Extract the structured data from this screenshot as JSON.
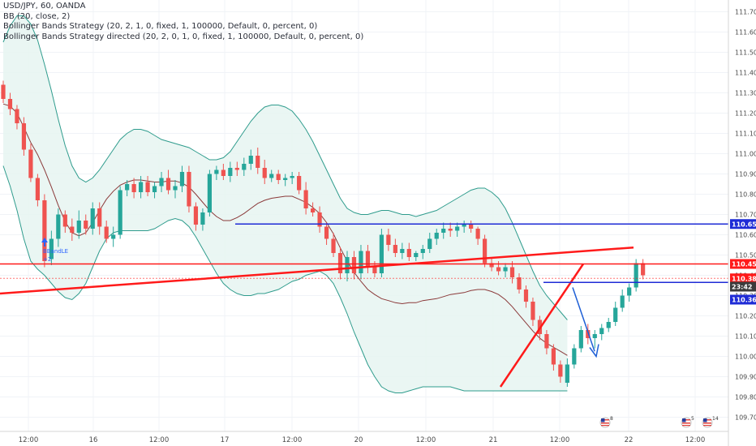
{
  "legend": {
    "line1": "USD/JPY, 60, OANDA",
    "line2": "BB (20, close, 2)",
    "line3": "Bollinger Bands Strategy (20, 2, 1, 0, fixed, 1, 100000, Default, 0, percent, 0)",
    "line4": "Bollinger Bands Strategy directed (20, 2, 0, 1, 0, fixed, 1, 100000, Default, 0, percent, 0)"
  },
  "colors": {
    "up": "#26a69a",
    "down": "#ef5350",
    "band": "#2f9c8d",
    "band_fill": "#e6f4f1",
    "basis": "#8b3a3a",
    "blue_line": "#1e2bd6",
    "red_line": "#ff1a1a",
    "arrow": "#1e5fd6",
    "tag_blue": "#1e2bd6",
    "tag_red": "#ff1a1a",
    "tag_dark": "#3b3b3b"
  },
  "chart_data": {
    "type": "candlestick",
    "symbol": "USD/JPY",
    "interval": "60",
    "source": "OANDA",
    "ylim": [
      109.66,
      111.8
    ],
    "y_ticks": [
      "111.700",
      "111.600",
      "111.500",
      "111.400",
      "111.300",
      "111.200",
      "111.100",
      "111.000",
      "110.900",
      "110.800",
      "110.700",
      "110.600",
      "110.500",
      "110.400",
      "110.300",
      "110.200",
      "110.100",
      "110.000",
      "109.900",
      "109.800",
      "109.700"
    ],
    "x_ticks": [
      "12:00",
      "16",
      "12:00",
      "17",
      "12:00",
      "20",
      "12:00",
      "21",
      "12:00",
      "22",
      "12:00"
    ],
    "price_tags": [
      {
        "label": "110.653",
        "value": 110.653,
        "color": "blue"
      },
      {
        "label": "110.456",
        "value": 110.456,
        "color": "red"
      },
      {
        "label": "110.385",
        "value": 110.385,
        "color": "red"
      },
      {
        "label": "23:42",
        "value": 110.344,
        "color": "dark"
      },
      {
        "label": "110.365",
        "value": 110.28,
        "color": "blue"
      }
    ],
    "candles": [
      [
        111.34,
        111.36,
        111.25,
        111.27
      ],
      [
        111.27,
        111.3,
        111.19,
        111.22
      ],
      [
        111.22,
        111.24,
        111.12,
        111.15
      ],
      [
        111.15,
        111.18,
        110.99,
        111.02
      ],
      [
        111.02,
        111.05,
        110.86,
        110.88
      ],
      [
        110.88,
        110.9,
        110.74,
        110.77
      ],
      [
        110.77,
        110.8,
        110.44,
        110.47
      ],
      [
        110.48,
        110.62,
        110.45,
        110.58
      ],
      [
        110.58,
        110.73,
        110.54,
        110.7
      ],
      [
        110.7,
        110.72,
        110.61,
        110.64
      ],
      [
        110.64,
        110.68,
        110.57,
        110.61
      ],
      [
        110.61,
        110.72,
        110.58,
        110.67
      ],
      [
        110.67,
        110.7,
        110.6,
        110.63
      ],
      [
        110.63,
        110.76,
        110.6,
        110.73
      ],
      [
        110.73,
        110.76,
        110.6,
        110.64
      ],
      [
        110.64,
        110.67,
        110.56,
        110.58
      ],
      [
        110.58,
        110.64,
        110.54,
        110.6
      ],
      [
        110.6,
        110.84,
        110.58,
        110.82
      ],
      [
        110.82,
        110.87,
        110.79,
        110.85
      ],
      [
        110.85,
        110.88,
        110.78,
        110.81
      ],
      [
        110.81,
        110.89,
        110.78,
        110.86
      ],
      [
        110.86,
        110.89,
        110.79,
        110.81
      ],
      [
        110.81,
        110.86,
        110.78,
        110.84
      ],
      [
        110.84,
        110.91,
        110.81,
        110.88
      ],
      [
        110.88,
        110.92,
        110.8,
        110.82
      ],
      [
        110.82,
        110.87,
        110.78,
        110.84
      ],
      [
        110.84,
        110.94,
        110.81,
        110.91
      ],
      [
        110.91,
        110.94,
        110.71,
        110.74
      ],
      [
        110.74,
        110.76,
        110.62,
        110.65
      ],
      [
        110.65,
        110.73,
        110.62,
        110.71
      ],
      [
        110.71,
        110.92,
        110.69,
        110.9
      ],
      [
        110.9,
        110.94,
        110.87,
        110.92
      ],
      [
        110.92,
        110.95,
        110.87,
        110.89
      ],
      [
        110.89,
        110.96,
        110.86,
        110.93
      ],
      [
        110.93,
        110.96,
        110.89,
        110.92
      ],
      [
        110.92,
        110.98,
        110.89,
        110.95
      ],
      [
        110.95,
        111.02,
        110.92,
        110.99
      ],
      [
        110.99,
        111.03,
        110.9,
        110.93
      ],
      [
        110.93,
        110.97,
        110.85,
        110.88
      ],
      [
        110.88,
        110.92,
        110.86,
        110.9
      ],
      [
        110.9,
        110.92,
        110.85,
        110.87
      ],
      [
        110.87,
        110.9,
        110.84,
        110.88
      ],
      [
        110.88,
        110.91,
        110.85,
        110.89
      ],
      [
        110.89,
        110.91,
        110.8,
        110.82
      ],
      [
        110.82,
        110.86,
        110.7,
        110.73
      ],
      [
        110.73,
        110.76,
        110.69,
        110.71
      ],
      [
        110.71,
        110.74,
        110.61,
        110.64
      ],
      [
        110.64,
        110.66,
        110.55,
        110.58
      ],
      [
        110.58,
        110.61,
        110.49,
        110.51
      ],
      [
        110.51,
        110.54,
        110.38,
        110.41
      ],
      [
        110.41,
        110.52,
        110.37,
        110.49
      ],
      [
        110.49,
        110.52,
        110.38,
        110.41
      ],
      [
        110.41,
        110.55,
        110.38,
        110.52
      ],
      [
        110.52,
        110.55,
        110.41,
        110.44
      ],
      [
        110.44,
        110.47,
        110.39,
        110.41
      ],
      [
        110.41,
        110.63,
        110.39,
        110.6
      ],
      [
        110.6,
        110.63,
        110.52,
        110.55
      ],
      [
        110.55,
        110.58,
        110.49,
        110.51
      ],
      [
        110.51,
        110.56,
        110.48,
        110.53
      ],
      [
        110.53,
        110.56,
        110.47,
        110.49
      ],
      [
        110.49,
        110.52,
        110.47,
        110.51
      ],
      [
        110.51,
        110.55,
        110.48,
        110.53
      ],
      [
        110.53,
        110.61,
        110.51,
        110.58
      ],
      [
        110.58,
        110.63,
        110.55,
        110.61
      ],
      [
        110.61,
        110.66,
        110.58,
        110.63
      ],
      [
        110.63,
        110.66,
        110.59,
        110.62
      ],
      [
        110.62,
        110.66,
        110.59,
        110.64
      ],
      [
        110.64,
        110.67,
        110.61,
        110.65
      ],
      [
        110.65,
        110.67,
        110.61,
        110.63
      ],
      [
        110.63,
        110.64,
        110.55,
        110.58
      ],
      [
        110.58,
        110.6,
        110.44,
        110.46
      ],
      [
        110.46,
        110.49,
        110.42,
        110.44
      ],
      [
        110.44,
        110.47,
        110.4,
        110.42
      ],
      [
        110.42,
        110.46,
        110.39,
        110.44
      ],
      [
        110.44,
        110.47,
        110.36,
        110.39
      ],
      [
        110.39,
        110.41,
        110.31,
        110.33
      ],
      [
        110.33,
        110.35,
        110.24,
        110.27
      ],
      [
        110.27,
        110.29,
        110.15,
        110.18
      ],
      [
        110.18,
        110.2,
        110.08,
        110.11
      ],
      [
        110.11,
        110.13,
        110.01,
        110.04
      ],
      [
        110.04,
        110.06,
        109.93,
        109.96
      ],
      [
        109.96,
        109.98,
        109.87,
        109.9
      ],
      [
        109.87,
        109.99,
        109.85,
        109.96
      ],
      [
        109.96,
        110.06,
        109.94,
        110.04
      ],
      [
        110.04,
        110.15,
        110.02,
        110.13
      ],
      [
        110.13,
        110.16,
        110.06,
        110.09
      ],
      [
        110.09,
        110.13,
        110.04,
        110.11
      ],
      [
        110.11,
        110.16,
        110.08,
        110.14
      ],
      [
        110.14,
        110.19,
        110.12,
        110.17
      ],
      [
        110.17,
        110.27,
        110.15,
        110.24
      ],
      [
        110.24,
        110.33,
        110.22,
        110.3
      ],
      [
        110.3,
        110.36,
        110.27,
        110.34
      ],
      [
        110.34,
        110.48,
        110.32,
        110.46
      ],
      [
        110.46,
        110.48,
        110.38,
        110.4
      ]
    ],
    "bb_upper": [
      111.55,
      111.63,
      111.68,
      111.68,
      111.64,
      111.56,
      111.44,
      111.31,
      111.17,
      111.04,
      110.94,
      110.88,
      110.86,
      110.88,
      110.92,
      110.97,
      111.02,
      111.07,
      111.1,
      111.12,
      111.12,
      111.11,
      111.09,
      111.07,
      111.06,
      111.05,
      111.04,
      111.03,
      111.01,
      110.99,
      110.97,
      110.97,
      110.98,
      111.01,
      111.06,
      111.11,
      111.16,
      111.2,
      111.23,
      111.24,
      111.24,
      111.23,
      111.21,
      111.17,
      111.12,
      111.06,
      110.99,
      110.92,
      110.85,
      110.78,
      110.73,
      110.71,
      110.7,
      110.7,
      110.71,
      110.72,
      110.72,
      110.71,
      110.7,
      110.7,
      110.69,
      110.7,
      110.71,
      110.72,
      110.74,
      110.76,
      110.78,
      110.8,
      110.82,
      110.83,
      110.83,
      110.81,
      110.78,
      110.73,
      110.66,
      110.58,
      110.5,
      110.42,
      110.35,
      110.3,
      110.26,
      110.22,
      110.18
    ],
    "bb_lower": [
      110.94,
      110.84,
      110.72,
      110.58,
      110.47,
      110.43,
      110.4,
      110.36,
      110.32,
      110.29,
      110.28,
      110.31,
      110.36,
      110.44,
      110.52,
      110.58,
      110.61,
      110.62,
      110.62,
      110.62,
      110.62,
      110.62,
      110.63,
      110.65,
      110.67,
      110.68,
      110.67,
      110.64,
      110.59,
      110.53,
      110.47,
      110.41,
      110.36,
      110.33,
      110.31,
      110.3,
      110.3,
      110.31,
      110.31,
      110.32,
      110.33,
      110.35,
      110.37,
      110.38,
      110.4,
      110.41,
      110.42,
      110.4,
      110.36,
      110.29,
      110.21,
      110.12,
      110.04,
      109.96,
      109.9,
      109.85,
      109.83,
      109.82,
      109.82,
      109.83,
      109.84,
      109.85,
      109.85,
      109.85,
      109.85,
      109.85,
      109.84,
      109.83,
      109.83,
      109.83,
      109.83,
      109.83,
      109.83,
      109.83,
      109.83,
      109.83,
      109.83,
      109.83,
      109.83,
      109.83,
      109.83,
      109.83,
      109.83
    ]
  },
  "markers": {
    "entry_label": "BBandLE",
    "entry_qty": "+2"
  },
  "events": [
    {
      "label": "8",
      "flag": "us"
    },
    {
      "label": "5",
      "flag": "us"
    },
    {
      "label": "14",
      "flag": "us"
    }
  ]
}
